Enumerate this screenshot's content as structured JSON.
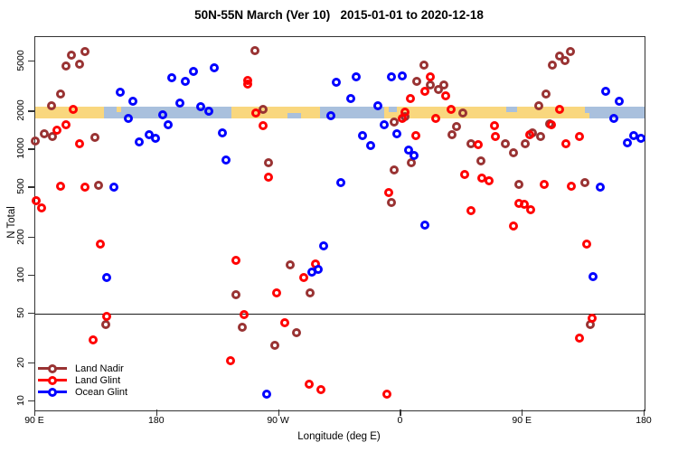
{
  "chart_data": {
    "type": "scatter",
    "title": "50N-55N March (Ver 10)   2015-01-01 to 2020-12-18",
    "xlabel": "Longitude (deg E)",
    "ylabel": "N Total",
    "x_axis": {
      "note": "longitude axis wraps eastward from 90E through 180, 90W, 0, 90E to 180",
      "range_deg": [
        90,
        540
      ],
      "ticks": [
        {
          "value": 90,
          "label": "90 E"
        },
        {
          "value": 180,
          "label": "180"
        },
        {
          "value": 270,
          "label": "90 W"
        },
        {
          "value": 360,
          "label": "0"
        },
        {
          "value": 450,
          "label": "90 E"
        },
        {
          "value": 540,
          "label": "180"
        }
      ]
    },
    "y_axis": {
      "scale": "log",
      "ticks": [
        10,
        20,
        50,
        100,
        200,
        500,
        1000,
        2000,
        5000
      ],
      "range": [
        9,
        7800
      ]
    },
    "reference_line_value": 50,
    "surface_band": {
      "center_value": 2000,
      "land_color": "#F9D77E",
      "ocean_color": "#A9C0DD",
      "segments": [
        {
          "start": 90,
          "end": 141,
          "type": "land"
        },
        {
          "start": 141,
          "end": 235,
          "type": "ocean"
        },
        {
          "start": 235,
          "end": 300,
          "type": "land"
        },
        {
          "start": 300,
          "end": 348,
          "type": "ocean"
        },
        {
          "start": 348,
          "end": 366,
          "type": "land"
        },
        {
          "start": 366,
          "end": 496,
          "type": "land"
        },
        {
          "start": 496,
          "end": 540,
          "type": "ocean"
        }
      ],
      "speckles": [
        {
          "start": 150,
          "end": 153.5,
          "pos": "top",
          "type": "land"
        },
        {
          "start": 276,
          "end": 286,
          "pos": "bottom",
          "type": "ocean"
        },
        {
          "start": 351,
          "end": 357,
          "pos": "top",
          "type": "ocean"
        },
        {
          "start": 360,
          "end": 365,
          "pos": "bottom",
          "type": "ocean"
        },
        {
          "start": 438,
          "end": 446,
          "pos": "top",
          "type": "ocean"
        },
        {
          "start": 496,
          "end": 499.5,
          "pos": "bottom",
          "type": "land"
        }
      ]
    },
    "series": [
      {
        "name": "Land Nadir",
        "color": "#993333",
        "points": [
          [
            117,
            5600
          ],
          [
            127,
            6000
          ],
          [
            123,
            4800
          ],
          [
            113,
            4600
          ],
          [
            109,
            2750
          ],
          [
            102,
            2230
          ],
          [
            97,
            1340
          ],
          [
            90,
            1170
          ],
          [
            103,
            1270
          ],
          [
            134,
            1250
          ],
          [
            137,
            520
          ],
          [
            252,
            6100
          ],
          [
            258,
            2080
          ],
          [
            262,
            780
          ],
          [
            377,
            4670
          ],
          [
            372,
            3500
          ],
          [
            382,
            3280
          ],
          [
            388,
            3010
          ],
          [
            392,
            3280
          ],
          [
            363,
            1830
          ],
          [
            355,
            1660
          ],
          [
            401,
            1510
          ],
          [
            398,
            1310
          ],
          [
            412,
            1120
          ],
          [
            419,
            810
          ],
          [
            355,
            690
          ],
          [
            368,
            790
          ],
          [
            353,
            380
          ],
          [
            406,
            1960
          ],
          [
            477,
            5480
          ],
          [
            485,
            6000
          ],
          [
            472,
            4670
          ],
          [
            481,
            5100
          ],
          [
            467,
            2750
          ],
          [
            462,
            2230
          ],
          [
            470,
            1600
          ],
          [
            457,
            1350
          ],
          [
            463,
            1270
          ],
          [
            452,
            1120
          ],
          [
            437,
            1120
          ],
          [
            443,
            945
          ],
          [
            447,
            525
          ],
          [
            496,
            545
          ],
          [
            142,
            41
          ],
          [
            278,
            121
          ],
          [
            293,
            73
          ],
          [
            238,
            70
          ],
          [
            243,
            39
          ],
          [
            283,
            35
          ],
          [
            267,
            28
          ],
          [
            500,
            41
          ]
        ]
      },
      {
        "name": "Land Glint",
        "color": "#FF0000",
        "points": [
          [
            118,
            2090
          ],
          [
            113,
            1580
          ],
          [
            106,
            1430
          ],
          [
            123,
            1120
          ],
          [
            91,
            390
          ],
          [
            95,
            345
          ],
          [
            109,
            510
          ],
          [
            127,
            505
          ],
          [
            247,
            3550
          ],
          [
            247,
            3300
          ],
          [
            253,
            1950
          ],
          [
            258,
            1540
          ],
          [
            262,
            600
          ],
          [
            382,
            3800
          ],
          [
            378,
            2900
          ],
          [
            393,
            2670
          ],
          [
            367,
            2540
          ],
          [
            397,
            2090
          ],
          [
            386,
            1780
          ],
          [
            371,
            1290
          ],
          [
            417,
            1100
          ],
          [
            429,
            1550
          ],
          [
            430,
            1270
          ],
          [
            407,
            635
          ],
          [
            420,
            590
          ],
          [
            425,
            560
          ],
          [
            351,
            455
          ],
          [
            412,
            328
          ],
          [
            363,
            1980
          ],
          [
            361,
            1780
          ],
          [
            477,
            2090
          ],
          [
            471,
            1560
          ],
          [
            455,
            1310
          ],
          [
            482,
            1120
          ],
          [
            492,
            1270
          ],
          [
            466,
            525
          ],
          [
            486,
            510
          ],
          [
            447,
            372
          ],
          [
            451,
            370
          ],
          [
            456,
            330
          ],
          [
            443,
            245
          ],
          [
            138,
            177
          ],
          [
            143,
            47
          ],
          [
            133,
            31
          ],
          [
            238,
            131
          ],
          [
            297,
            123
          ],
          [
            288,
            96
          ],
          [
            268,
            73
          ],
          [
            244,
            49
          ],
          [
            274,
            42
          ],
          [
            234,
            21
          ],
          [
            292,
            13.7
          ],
          [
            301,
            12.5
          ],
          [
            350,
            11.4
          ],
          [
            497,
            178
          ],
          [
            501,
            46
          ],
          [
            492,
            31.6
          ]
        ]
      },
      {
        "name": "Ocean Glint",
        "color": "#0000FF",
        "points": [
          [
            191,
            3710
          ],
          [
            201,
            3450
          ],
          [
            153,
            2870
          ],
          [
            162,
            2420
          ],
          [
            197,
            2350
          ],
          [
            159,
            1780
          ],
          [
            184,
            1890
          ],
          [
            188,
            1570
          ],
          [
            167,
            1140
          ],
          [
            174,
            1320
          ],
          [
            179,
            1230
          ],
          [
            148,
            500
          ],
          [
            222,
            4460
          ],
          [
            207,
            4140
          ],
          [
            312,
            3420
          ],
          [
            212,
            2180
          ],
          [
            218,
            2000
          ],
          [
            308,
            1860
          ],
          [
            228,
            1350
          ],
          [
            231,
            820
          ],
          [
            316,
            550
          ],
          [
            327,
            3800
          ],
          [
            353,
            3800
          ],
          [
            361,
            3850
          ],
          [
            323,
            2540
          ],
          [
            343,
            2230
          ],
          [
            348,
            1580
          ],
          [
            357,
            1340
          ],
          [
            332,
            1280
          ],
          [
            338,
            1075
          ],
          [
            366,
            990
          ],
          [
            370,
            900
          ],
          [
            378,
            250
          ],
          [
            511,
            2880
          ],
          [
            521,
            2430
          ],
          [
            517,
            1760
          ],
          [
            527,
            1130
          ],
          [
            532,
            1280
          ],
          [
            537,
            1230
          ],
          [
            507,
            505
          ],
          [
            143,
            96
          ],
          [
            303,
            171
          ],
          [
            294,
            107
          ],
          [
            299,
            111
          ],
          [
            261,
            11.4
          ],
          [
            502,
            97.5
          ]
        ]
      }
    ],
    "legend": {
      "position": "bottom-left",
      "entries": [
        "Land Nadir",
        "Land Glint",
        "Ocean Glint"
      ]
    }
  }
}
